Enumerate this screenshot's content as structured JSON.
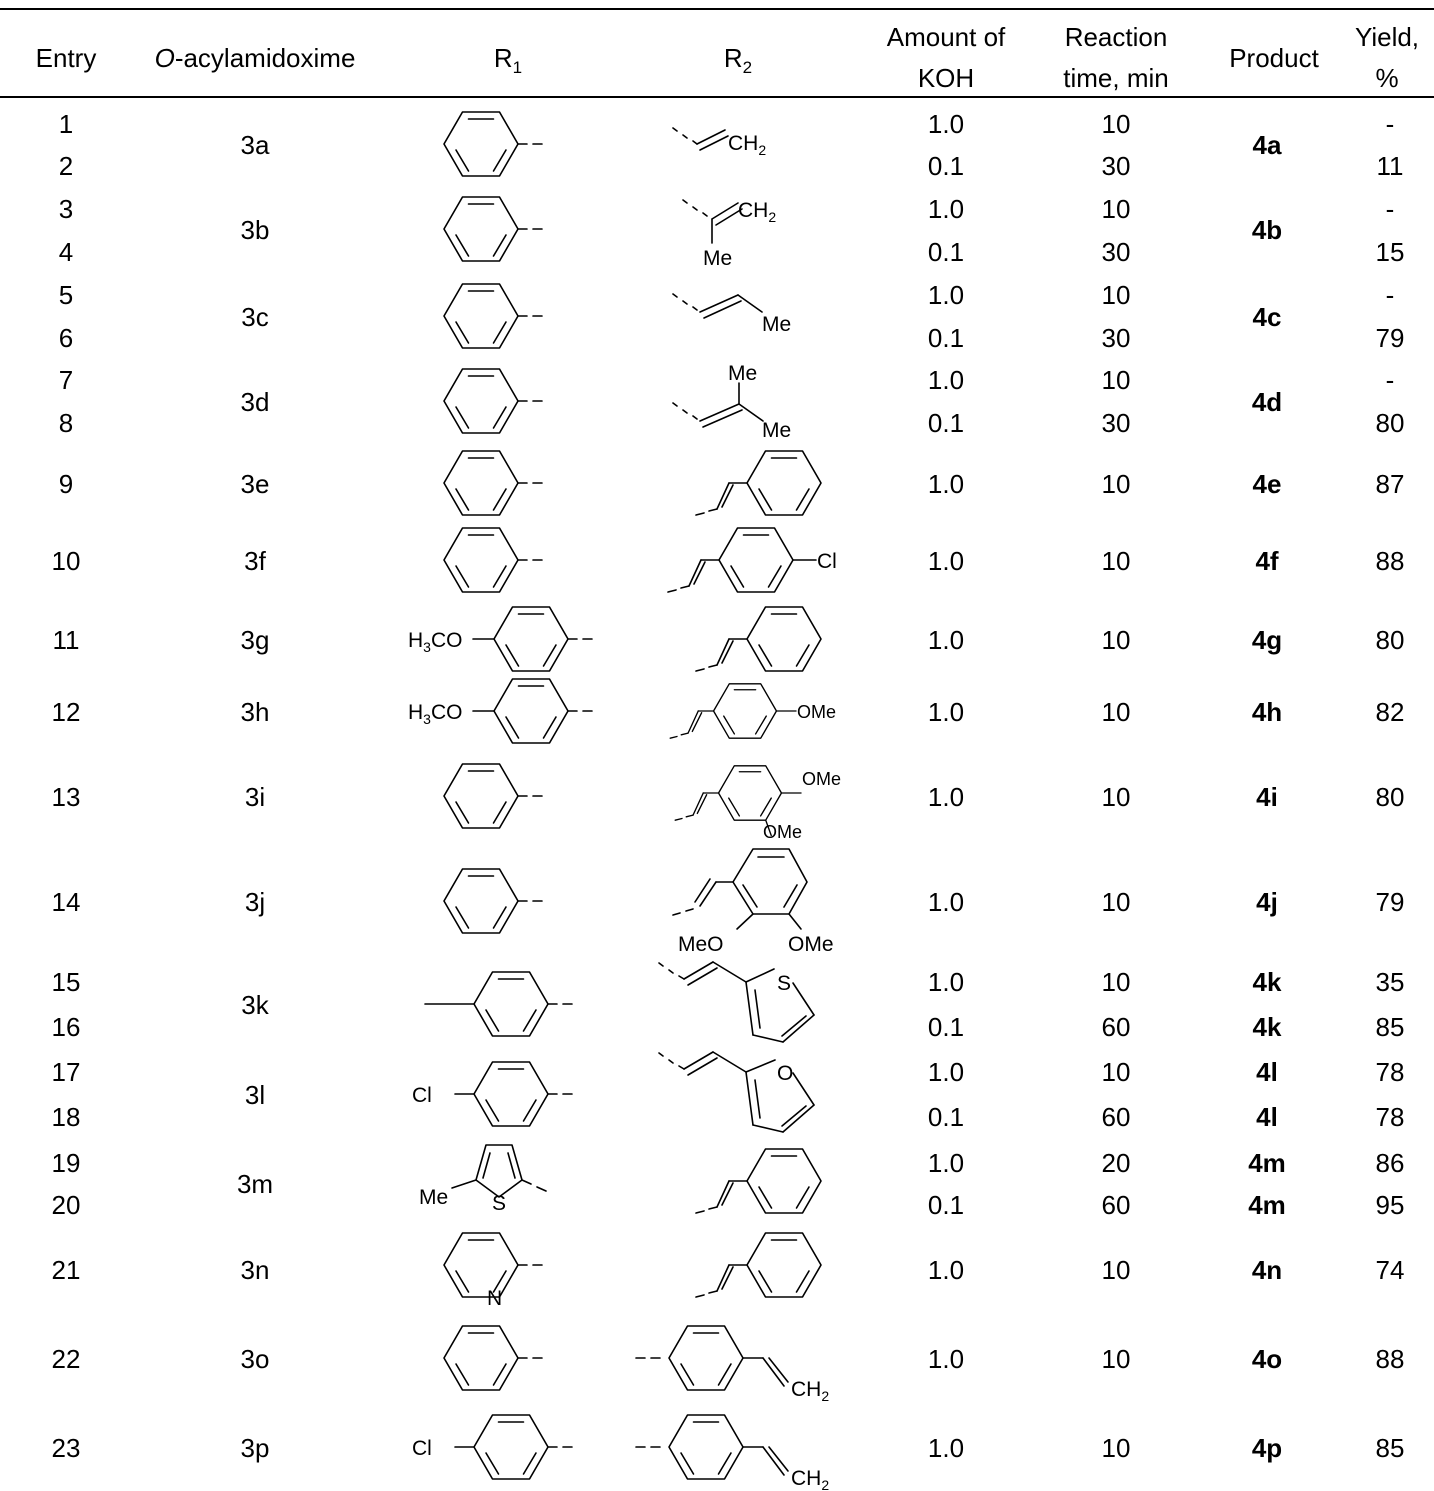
{
  "header": {
    "entry": "Entry",
    "oacyl_italic": "O",
    "oacyl_rest": "-acylamidoxime",
    "r1_base": "R",
    "r1_sub": "1",
    "r2_base": "R",
    "r2_sub": "2",
    "koh_1": "Amount of",
    "koh_2": "KOH",
    "time_1": "Reaction",
    "time_2": "time, min",
    "product": "Product",
    "yield_1": "Yield,",
    "yield_2": "%"
  },
  "rows": [
    {
      "entry": "1",
      "koh": "1.0",
      "time": "10",
      "yield": "-"
    },
    {
      "entry": "2",
      "koh": "0.1",
      "time": "30",
      "yield": "11"
    },
    {
      "entry": "3",
      "koh": "1.0",
      "time": "10",
      "yield": "-"
    },
    {
      "entry": "4",
      "koh": "0.1",
      "time": "30",
      "yield": "15"
    },
    {
      "entry": "5",
      "koh": "1.0",
      "time": "10",
      "yield": "-"
    },
    {
      "entry": "6",
      "koh": "0.1",
      "time": "30",
      "yield": "79"
    },
    {
      "entry": "7",
      "koh": "1.0",
      "time": "10",
      "yield": "-"
    },
    {
      "entry": "8",
      "koh": "0.1",
      "time": "30",
      "yield": "80"
    },
    {
      "entry": "9",
      "koh": "1.0",
      "time": "10",
      "yield": "87"
    },
    {
      "entry": "10",
      "koh": "1.0",
      "time": "10",
      "yield": "88"
    },
    {
      "entry": "11",
      "koh": "1.0",
      "time": "10",
      "yield": "80"
    },
    {
      "entry": "12",
      "koh": "1.0",
      "time": "10",
      "yield": "82"
    },
    {
      "entry": "13",
      "koh": "1.0",
      "time": "10",
      "yield": "80"
    },
    {
      "entry": "14",
      "koh": "1.0",
      "time": "10",
      "yield": "79"
    },
    {
      "entry": "15",
      "koh": "1.0",
      "time": "10",
      "yield": "35"
    },
    {
      "entry": "16",
      "koh": "0.1",
      "time": "60",
      "yield": "85"
    },
    {
      "entry": "17",
      "koh": "1.0",
      "time": "10",
      "yield": "78"
    },
    {
      "entry": "18",
      "koh": "0.1",
      "time": "60",
      "yield": "78"
    },
    {
      "entry": "19",
      "koh": "1.0",
      "time": "20",
      "yield": "86"
    },
    {
      "entry": "20",
      "koh": "0.1",
      "time": "60",
      "yield": "95"
    },
    {
      "entry": "21",
      "koh": "1.0",
      "time": "10",
      "yield": "74"
    },
    {
      "entry": "22",
      "koh": "1.0",
      "time": "10",
      "yield": "88"
    },
    {
      "entry": "23",
      "koh": "1.0",
      "time": "10",
      "yield": "85"
    }
  ],
  "compounds": [
    "3a",
    "3b",
    "3c",
    "3d",
    "3e",
    "3f",
    "3g",
    "3h",
    "3i",
    "3j",
    "3k",
    "3l",
    "3m",
    "3n",
    "3o",
    "3p"
  ],
  "products": [
    "4a",
    "4b",
    "4c",
    "4d",
    "4e",
    "4f",
    "4g",
    "4h",
    "4i",
    "4j",
    "4k",
    "4k",
    "4l",
    "4l",
    "4m",
    "4m",
    "4n",
    "4o",
    "4p"
  ],
  "labels": {
    "ch2": "CH",
    "sub2": "2",
    "me": "Me",
    "cl": "Cl",
    "h3co_h": "H",
    "h3co_3": "3",
    "h3co_co": "CO",
    "ome": "OMe",
    "meo": "MeO",
    "s": "S",
    "o": "O",
    "n": "N"
  }
}
